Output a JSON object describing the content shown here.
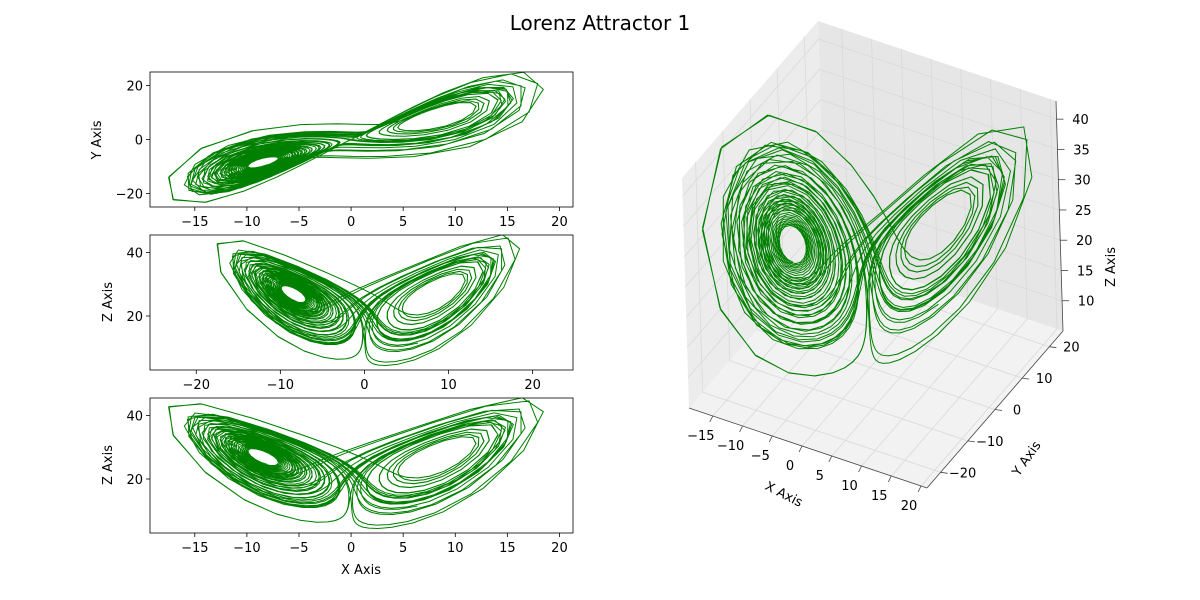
{
  "figure": {
    "title": "Lorenz Attractor 1"
  },
  "colors": {
    "line": "#008000",
    "axis": "#000000",
    "grid": "#d9d9d9",
    "pane": "#f2f2f2"
  },
  "chart_data": [
    {
      "panel": "xy",
      "type": "line",
      "projection": [
        "x",
        "y"
      ],
      "xlabel": "",
      "ylabel": "Y Axis",
      "xlim": [
        -19.3,
        21.3
      ],
      "ylim": [
        -25,
        25
      ],
      "xticks": [
        -15,
        -10,
        -5,
        0,
        5,
        10,
        15,
        20
      ],
      "yticks": [
        -20,
        0,
        20
      ],
      "grid": false
    },
    {
      "panel": "xz",
      "type": "line",
      "projection": [
        "x",
        "z"
      ],
      "xlabel": "",
      "ylabel": "Z Axis",
      "xlim": [
        -25.5,
        24.8
      ],
      "ylim": [
        3,
        45.5
      ],
      "xticks": [
        -20,
        -10,
        0,
        10,
        20
      ],
      "yticks": [
        20,
        40
      ],
      "grid": false
    },
    {
      "panel": "xz-2",
      "type": "line",
      "projection": [
        "x",
        "z"
      ],
      "xlabel": "X Axis",
      "ylabel": "Z Axis",
      "xlim": [
        -19.3,
        21.3
      ],
      "ylim": [
        3,
        45.5
      ],
      "xticks": [
        -15,
        -10,
        -5,
        0,
        5,
        10,
        15,
        20
      ],
      "yticks": [
        20,
        40
      ],
      "grid": false
    },
    {
      "panel": "3d",
      "type": "line",
      "projection": [
        "x",
        "y",
        "z"
      ],
      "xlabel": "X Axis",
      "ylabel": "Y Axis",
      "zlabel": "Z Axis",
      "xlim": [
        -19,
        21
      ],
      "ylim": [
        -25,
        25
      ],
      "zlim": [
        5,
        43
      ],
      "xticks": [
        -15,
        -10,
        -5,
        0,
        5,
        10,
        15,
        20
      ],
      "yticks": [
        -20,
        -10,
        0,
        10,
        20
      ],
      "zticks": [
        10,
        15,
        20,
        25,
        30,
        35,
        40
      ],
      "grid": true
    }
  ]
}
